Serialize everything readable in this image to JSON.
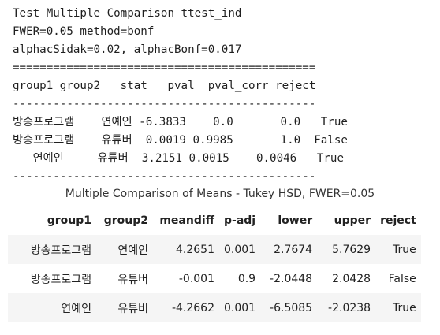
{
  "text_output": {
    "lines": [
      "Test Multiple Comparison ttest_ind",
      "FWER=0.05 method=bonf",
      "alphacSidak=0.02, alphacBonf=0.017",
      "=============================================",
      "group1 group2   stat   pval  pval_corr reject",
      "---------------------------------------------",
      "방송프로그램    연예인 -6.3833    0.0       0.0   True",
      "방송프로그램    유튜버  0.0019 0.9985       1.0  False",
      "   연예인     유튜버  3.2151 0.0015    0.0046   True",
      "---------------------------------------------"
    ]
  },
  "tukey_table": {
    "caption": "Multiple Comparison of Means - Tukey HSD, FWER=0.05",
    "columns": [
      "group1",
      "group2",
      "meandiff",
      "p-adj",
      "lower",
      "upper",
      "reject"
    ],
    "rows": [
      [
        "방송프로그램",
        "연예인",
        "4.2651",
        "0.001",
        "2.7674",
        "5.7629",
        "True"
      ],
      [
        "방송프로그램",
        "유튜버",
        "-0.001",
        "0.9",
        "-2.0448",
        "2.0428",
        "False"
      ],
      [
        "연예인",
        "유튜버",
        "-4.2662",
        "0.001",
        "-6.5085",
        "-2.0238",
        "True"
      ]
    ]
  }
}
